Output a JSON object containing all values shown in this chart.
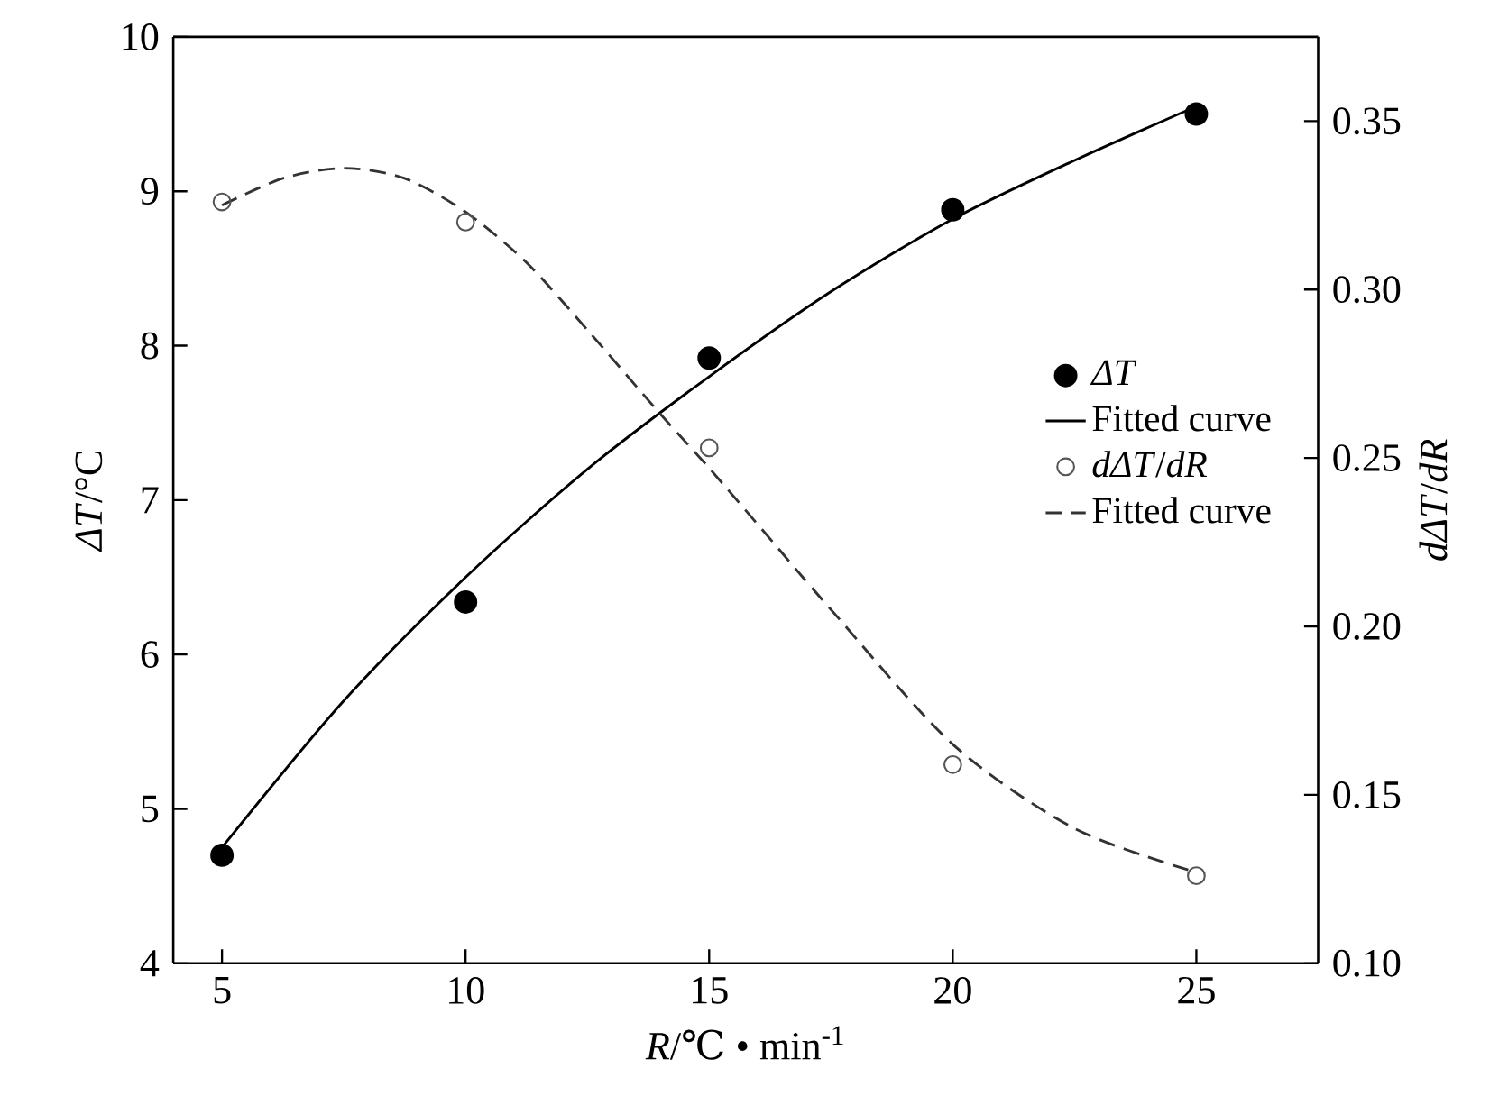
{
  "chart_data": {
    "type": "scatter",
    "xlabel": "*R*/℃ • min$^{-1}$",
    "ylabel": "*ΔT*/°C",
    "y2label": "*dΔT*/*dR*",
    "xlim": [
      4,
      27.5
    ],
    "xticks": [
      5,
      10,
      15,
      20,
      25
    ],
    "ylim": [
      4,
      10
    ],
    "yticks": [
      4,
      5,
      6,
      7,
      8,
      9,
      10
    ],
    "y2lim": [
      0.1,
      0.375
    ],
    "y2ticks": [
      {
        "value": 0.1,
        "label": "0.10"
      },
      {
        "value": 0.15,
        "label": "0.15"
      },
      {
        "value": 0.2,
        "label": "0.20"
      },
      {
        "value": 0.25,
        "label": "0.25"
      },
      {
        "value": 0.3,
        "label": "0.30"
      },
      {
        "value": 0.35,
        "label": "0.35"
      }
    ],
    "legend": "right",
    "grid": false,
    "series": [
      {
        "name": "*ΔT*",
        "marker": "circle",
        "color": "#000000",
        "x": [
          5,
          10,
          15,
          20,
          25
        ],
        "values": [
          4.7,
          6.34,
          7.92,
          8.88,
          9.5
        ]
      },
      {
        "name": "Fitted curve",
        "type": "line",
        "line_style": "solid",
        "color": "#000000",
        "x": [
          5,
          7.5,
          10,
          12.5,
          15,
          17.5,
          20,
          22.5,
          25
        ],
        "values": [
          4.75,
          5.7,
          6.5,
          7.2,
          7.8,
          8.35,
          8.82,
          9.2,
          9.55
        ]
      },
      {
        "name": "*dΔT*/*dR*",
        "marker": "circle",
        "axis": "y2",
        "color": "#555555",
        "x": [
          5,
          10,
          15,
          20,
          25
        ],
        "values": [
          0.326,
          0.32,
          0.253,
          0.159,
          0.126
        ]
      },
      {
        "name": "Fitted curve",
        "type": "line",
        "line_style": "dashed",
        "axis": "y2",
        "color": "#333333",
        "x": [
          5,
          6.25,
          7.5,
          8.75,
          10,
          11.25,
          12.5,
          14,
          15,
          16.25,
          17.5,
          20,
          22.5,
          25
        ],
        "values": [
          0.325,
          0.333,
          0.336,
          0.333,
          0.323,
          0.308,
          0.288,
          0.263,
          0.247,
          0.226,
          0.205,
          0.165,
          0.14,
          0.127
        ]
      }
    ]
  }
}
